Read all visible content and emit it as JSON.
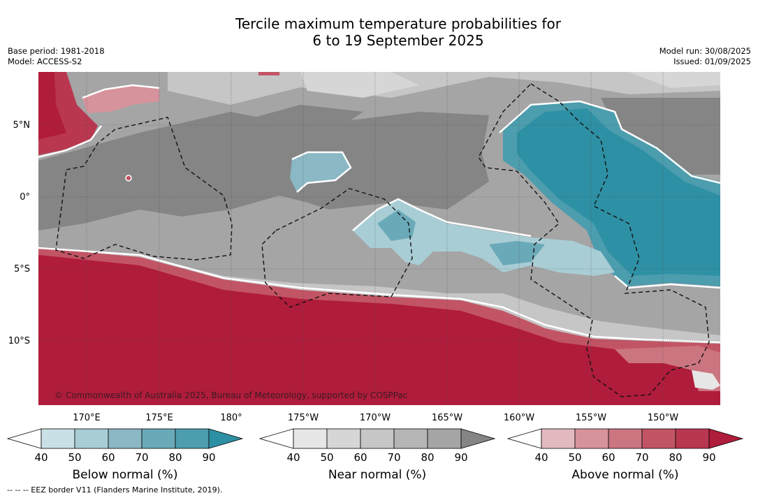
{
  "title_line1": "Tercile maximum temperature probabilities for",
  "title_line2": "6 to 19 September 2025",
  "meta_left": {
    "base_period": "Base period: 1981-2018",
    "model": "Model: ACCESS-S2"
  },
  "meta_right": {
    "model_run": "Model run: 30/08/2025",
    "issued": "Issued: 01/09/2025"
  },
  "lat_labels": [
    "5°N",
    "0°",
    "5°S",
    "10°S"
  ],
  "lon_labels": [
    "170°E",
    "175°E",
    "180°",
    "175°W",
    "170°W",
    "165°W",
    "160°W",
    "155°W",
    "150°W"
  ],
  "copyright": "© Commonwealth of Australia 2025, Bureau of Meteorology, supported by COSPPac",
  "colorbars": [
    {
      "title": "Below normal (%)",
      "ticks": [
        "40",
        "50",
        "60",
        "70",
        "80",
        "90"
      ],
      "colors": [
        "#c9e1e6",
        "#a9cdd5",
        "#8ab8c4",
        "#6aa9b8",
        "#4c9dae",
        "#2e90a4"
      ]
    },
    {
      "title": "Near normal (%)",
      "ticks": [
        "40",
        "50",
        "60",
        "70",
        "80",
        "90"
      ],
      "colors": [
        "#e6e6e6",
        "#d6d6d6",
        "#c6c6c6",
        "#b5b5b5",
        "#a5a5a5",
        "#858585"
      ]
    },
    {
      "title": "Above normal (%)",
      "ticks": [
        "40",
        "50",
        "60",
        "70",
        "80",
        "90"
      ],
      "colors": [
        "#e3b9c0",
        "#d7939c",
        "#cb7580",
        "#c25565",
        "#b93750",
        "#b01c3b"
      ]
    }
  ],
  "footer": "--  --  -- EEZ border V11 (Flanders Marine Institute, 2019)."
}
